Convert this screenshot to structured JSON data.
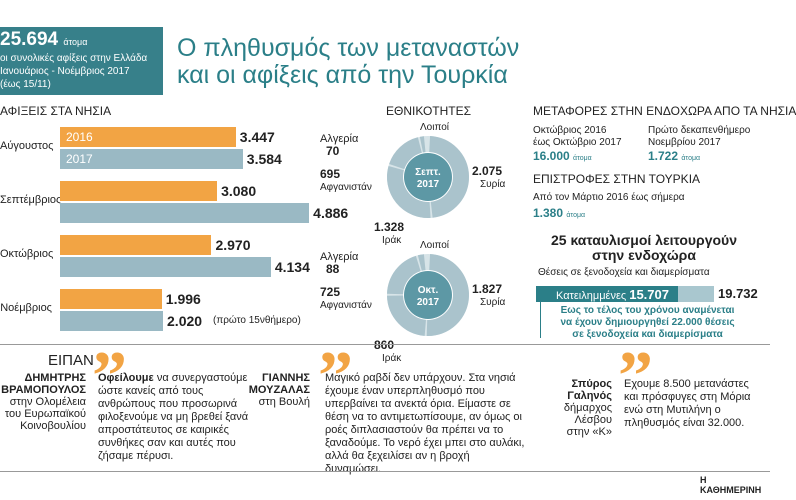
{
  "header": {
    "total": "25.694",
    "total_unit": "άτομα",
    "line1": "οι συνολικές αφίξεις στην Ελλάδα",
    "line2": "Ιανουάριος - Νοέμβριος 2017",
    "line3": "(έως 15/11)"
  },
  "title": {
    "line1": "Ο πληθυσμός των μεταναστών",
    "line2": "και οι αφίξεις από την Τουρκία"
  },
  "islands": {
    "heading": "ΑΦΙΞΕΙΣ ΣΤΑ ΝΗΣΙΑ",
    "note": "(πρώτο 15νθήμερο)"
  },
  "chart_data": [
    {
      "type": "bar",
      "title": "ΑΦΙΞΕΙΣ ΣΤΑ ΝΗΣΙΑ",
      "categories": [
        "Αύγουστος",
        "Σεπτέμβριος",
        "Οκτώβριος",
        "Νοέμβριος"
      ],
      "series": [
        {
          "name": "2016",
          "values": [
            3447,
            3080,
            2970,
            1996
          ],
          "labels": [
            "3.447",
            "3.080",
            "2.970",
            "1.996"
          ],
          "color": "#f2a444"
        },
        {
          "name": "2017",
          "values": [
            3584,
            4886,
            4134,
            2020
          ],
          "labels": [
            "3.584",
            "4.886",
            "4.134",
            "2.020"
          ],
          "color": "#9ab9c4"
        }
      ],
      "xlim": [
        0,
        5000
      ]
    },
    {
      "type": "pie",
      "title": "Σεπτ. 2017",
      "slices": [
        {
          "name": "Λοιποί",
          "value": 0,
          "label": ""
        },
        {
          "name": "Συρία",
          "value": 2075,
          "label": "2.075"
        },
        {
          "name": "Ιράκ",
          "value": 1328,
          "label": "1.328"
        },
        {
          "name": "Αφγανιστάν",
          "value": 695,
          "label": "695"
        },
        {
          "name": "Αλγερία",
          "value": 70,
          "label": "70"
        }
      ]
    },
    {
      "type": "pie",
      "title": "Οκτ. 2017",
      "slices": [
        {
          "name": "Λοιποί",
          "value": 0,
          "label": ""
        },
        {
          "name": "Συρία",
          "value": 1827,
          "label": "1.827"
        },
        {
          "name": "Ιράκ",
          "value": 860,
          "label": "860"
        },
        {
          "name": "Αφγανιστάν",
          "value": 725,
          "label": "725"
        },
        {
          "name": "Αλγερία",
          "value": 88,
          "label": "88"
        }
      ]
    },
    {
      "type": "bar",
      "title": "Θέσεις σε ξενοδοχεία και διαμερίσματα",
      "categories": [
        "Κατειλημμένες"
      ],
      "values": [
        15707
      ],
      "value_label": "15.707",
      "total": 19732,
      "total_label": "19.732"
    }
  ],
  "nationalities": {
    "heading": "ΕΘΝΙΚΟΤΗΤΕΣ",
    "sep_center": [
      "Σεπτ.",
      "2017"
    ],
    "oct_center": [
      "Οκτ.",
      "2017"
    ],
    "names": {
      "loipoi": "Λοιποί",
      "algeria": "Αλγερία",
      "afghan": "Αφγανιστάν",
      "syria": "Συρία",
      "iraq": "Ιράκ"
    }
  },
  "transfers": {
    "heading": "ΜΕΤΑΦΟΡΕΣ ΣΤΗΝ ΕΝΔΟΧΩΡΑ ΑΠΟ ΤΑ ΝΗΣΙΑ",
    "p1_l1": "Οκτώβριος 2016",
    "p1_l2": "έως Οκτώβριο 2017",
    "p1_val": "16.000",
    "p2_l1": "Πρώτο δεκαπενθήμερο",
    "p2_l2": "Νοεμβρίου 2017",
    "p2_val": "1.722",
    "unit": "άτομα"
  },
  "returns": {
    "heading": "ΕΠΙΣΤΡΟΦΕΣ ΣΤΗΝ ΤΟΥΡΚΙΑ",
    "text": "Από τον Μάρτιο 2016 έως σήμερα",
    "val": "1.380",
    "unit": "άτομα"
  },
  "camps": {
    "title_l1": "25 καταυλισμοί λειτουργούν",
    "title_l2": "στην ενδοχώρα",
    "sub": "Θέσεις σε ξενοδοχεία και διαμερίσματα",
    "occupied_label": "Κατειλημμένες",
    "note_l1": "Εως το τέλος του χρόνου αναμένεται",
    "note_l2": "να έχουν δημιουργηθεί 22.000 θέσεις",
    "note_l3": "σε ξενοδοχεία και διαμερίσματα"
  },
  "quotes": {
    "heading": "ΕΙΠΑΝ",
    "q1": {
      "name_l1": "ΔΗΜΗΤΡΗΣ",
      "name_l2": "ΒΡΑΜΟΠΟΥΛΟΣ",
      "role_l1": "στην Ολομέλεια",
      "role_l2": "του Ευρωπαϊκού",
      "role_l3": "Κοινοβουλίου",
      "lead": "Οφείλουμε",
      "text": "να συνεργαστούμε ώστε κανείς από τους ανθρώπους που προσωρινά φιλοξενούμε να μη βρεθεί ξανά απροστάτευτος σε καιρικές συνθήκες σαν και αυτές που ζήσαμε πέρυσι."
    },
    "q2": {
      "name_l1": "ΓΙΑΝΝΗΣ",
      "name_l2": "ΜΟΥΖΑΛΑΣ",
      "role_l1": "στη Βουλή",
      "text": "Μαγικό ραβδί δεν υπάρχουν. Στα νησιά έχουμε έναν υπερπληθυσμό που υπερβαίνει τα ανεκτά όρια. Είμαστε σε θέση να το αντιμετωπίσουμε, αν όμως οι ροές διπλασιαστούν θα πρέπει να το ξαναδούμε. Το νερό έχει μπει στο αυλάκι, αλλά θα ξεχειλίσει αν η βροχή δυναμώσει."
    },
    "q3": {
      "name_l1": "Σπύρος",
      "name_l2": "Γαληνός",
      "role_l1": "δήμαρχος",
      "role_l2": "Λέσβου",
      "role_l3": "στην «Κ»",
      "text": "Εχουμε 8.500 μετανάστες και πρόσφυγες στη Μόρια ενώ στη Μυτιλήνη ο πληθυσμός είναι 32.000."
    }
  },
  "footer": {
    "brand": "Η ΚΑΘΗΜΕΡΙΝΗ"
  },
  "colors": {
    "accent": "#2b7f88",
    "orange": "#f2a444",
    "bar2017": "#9ab9c4",
    "ring": "#aac3cc",
    "ring_light": "#d7e4e8"
  }
}
